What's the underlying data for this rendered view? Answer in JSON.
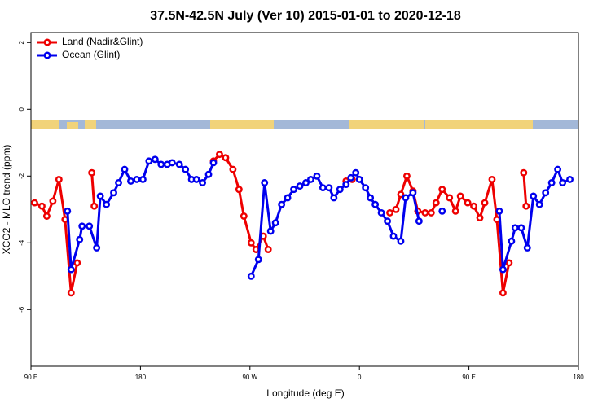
{
  "chart_data": {
    "type": "line",
    "title": "37.5N-42.5N July (Ver 10)   2015-01-01 to 2020-12-18",
    "x_label": "Longitude (deg E)",
    "y_label": "XCO2 - MLO trend (ppm)",
    "xlim": [
      90,
      540
    ],
    "xticks": [
      {
        "value": 90,
        "label": "90 E"
      },
      180,
      {
        "value": 270,
        "label": "90 W"
      },
      {
        "value": 360,
        "label": "0"
      },
      {
        "value": 450,
        "label": "90 E"
      },
      {
        "value": 540,
        "label": "180"
      }
    ],
    "ylim": [
      -7.7,
      2.3
    ],
    "yticks": [
      2,
      0,
      -2,
      -4,
      -6
    ],
    "legend": "upper left",
    "series": [
      {
        "name": "Land (Nadir&Glint)",
        "color": "#ee0000",
        "x": [
          93,
          99,
          103,
          108,
          113,
          118,
          123,
          128,
          134,
          140,
          142,
          190,
          240,
          245,
          250,
          256,
          261,
          265,
          271,
          275,
          281,
          285,
          320,
          349,
          354,
          370,
          385,
          390,
          394,
          399,
          404,
          408,
          414,
          419,
          423,
          428,
          434,
          439,
          443,
          449,
          454,
          459,
          463,
          469,
          473,
          478,
          483,
          489,
          495,
          497
        ],
        "values": [
          -2.8,
          -2.9,
          -3.2,
          -2.75,
          -2.1,
          -3.3,
          -5.5,
          -4.6,
          null,
          -1.9,
          -2.9,
          null,
          -1.55,
          -1.35,
          -1.45,
          -1.8,
          -2.4,
          -3.2,
          -4.0,
          -4.2,
          -3.8,
          -4.2,
          null,
          -2.15,
          -2.1,
          null,
          -3.1,
          -3.0,
          -2.55,
          -2.0,
          -2.45,
          -3.05,
          -3.1,
          -3.1,
          -2.8,
          -2.4,
          -2.65,
          -3.05,
          -2.6,
          -2.8,
          -2.9,
          -3.25,
          -2.8,
          -2.1,
          -3.3,
          -5.5,
          -4.6,
          null,
          -1.9,
          -2.9
        ]
      },
      {
        "name": "Ocean (Glint)",
        "color": "#0000ee",
        "x": [
          120,
          123,
          130,
          132,
          138,
          144,
          147,
          152,
          158,
          162,
          167,
          172,
          177,
          182,
          187,
          192,
          197,
          202,
          206,
          212,
          217,
          222,
          226,
          231,
          236,
          240,
          255,
          271,
          277,
          282,
          287,
          291,
          296,
          301,
          306,
          311,
          316,
          320,
          325,
          330,
          335,
          339,
          344,
          349,
          353,
          357,
          360,
          365,
          369,
          373,
          378,
          383,
          388,
          394,
          398,
          404,
          409,
          418,
          428,
          450,
          475,
          478,
          485,
          488,
          493,
          498,
          503,
          508,
          513,
          518,
          523,
          527,
          533
        ],
        "values": [
          -3.05,
          -4.8,
          -3.9,
          -3.5,
          -3.5,
          -4.15,
          -2.6,
          -2.85,
          -2.5,
          -2.2,
          -1.8,
          -2.15,
          -2.1,
          -2.1,
          -1.55,
          -1.5,
          -1.65,
          -1.65,
          -1.6,
          -1.65,
          -1.8,
          -2.1,
          -2.1,
          -2.2,
          -1.95,
          -1.6,
          null,
          -5.0,
          -4.5,
          -2.2,
          -3.65,
          -3.4,
          -2.85,
          -2.65,
          -2.4,
          -2.3,
          -2.2,
          -2.1,
          -2.0,
          -2.35,
          -2.35,
          -2.65,
          -2.4,
          -2.25,
          -2.05,
          -1.9,
          -2.1,
          -2.35,
          -2.65,
          -2.85,
          -3.1,
          -3.35,
          -3.8,
          -3.95,
          -2.65,
          -2.5,
          -3.35,
          null,
          -3.05,
          null,
          -3.05,
          -4.8,
          -3.95,
          -3.55,
          -3.55,
          -4.15,
          -2.6,
          -2.85,
          -2.5,
          -2.2,
          -1.8,
          -2.2,
          -2.1
        ]
      }
    ]
  }
}
